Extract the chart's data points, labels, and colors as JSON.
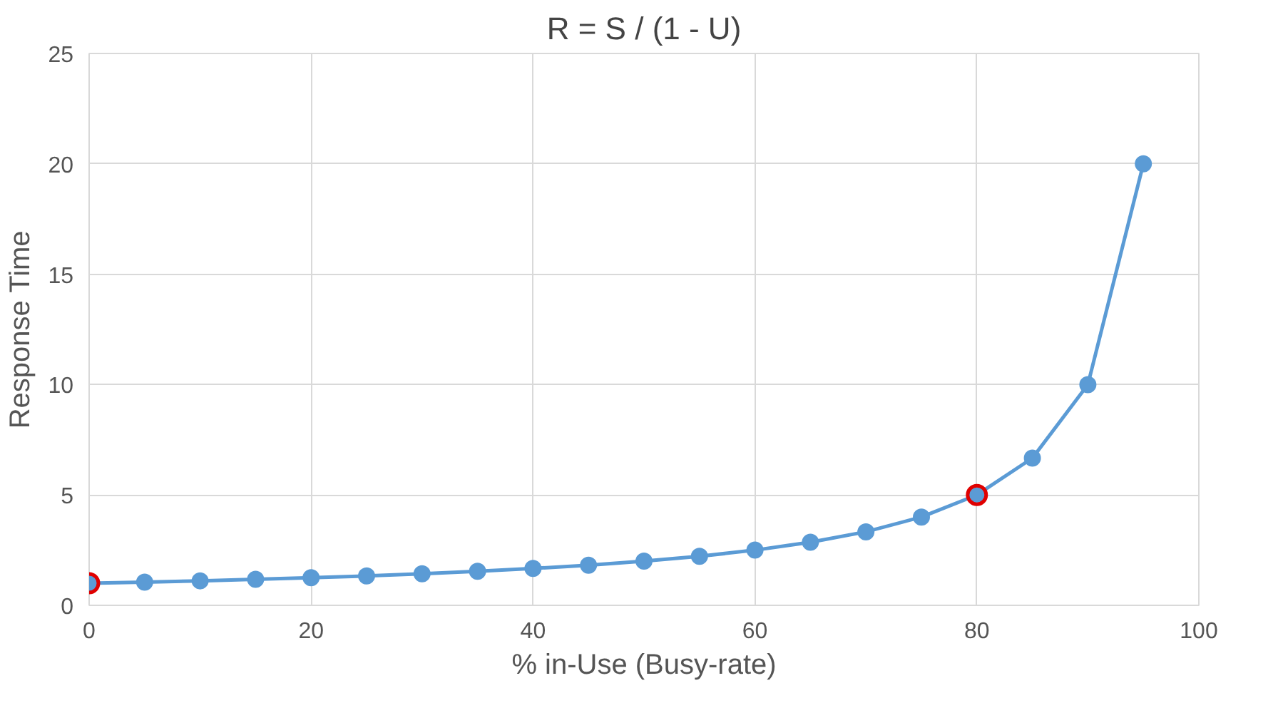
{
  "chart_data": {
    "type": "line",
    "title": "R = S / (1 - U)",
    "xlabel": "% in-Use (Busy-rate)",
    "ylabel": "Response Time",
    "xlim": [
      0,
      100
    ],
    "ylim": [
      0,
      25
    ],
    "xticks": [
      0,
      20,
      40,
      60,
      80,
      100
    ],
    "yticks": [
      0,
      5,
      10,
      15,
      20,
      25
    ],
    "grid": true,
    "marker": "circle",
    "line_style": "solid",
    "series": [
      {
        "color": "#5b9bd5",
        "x": [
          0,
          5,
          10,
          15,
          20,
          25,
          30,
          35,
          40,
          45,
          50,
          55,
          60,
          65,
          70,
          75,
          80,
          85,
          90,
          95
        ],
        "values": [
          1,
          1.05,
          1.11,
          1.18,
          1.25,
          1.33,
          1.43,
          1.54,
          1.67,
          1.82,
          2,
          2.22,
          2.5,
          2.86,
          3.33,
          4,
          5,
          6.67,
          10,
          20
        ]
      },
      {
        "type": "scatter",
        "color": "#e00000",
        "x": [
          0,
          80
        ],
        "values": [
          1,
          5
        ]
      }
    ]
  }
}
